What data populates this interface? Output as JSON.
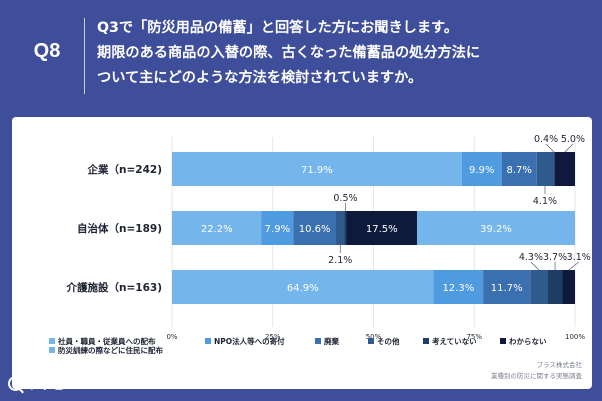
{
  "header": {
    "question_number": "Q8",
    "question_text": "Q3で「防災用品の備蓄」と回答した方にお聞きします。\n期限のある商品の入替の際、古くなった備蓄品の処分方法に\nついて主にどのような方法を検討されていますか。"
  },
  "brand": {
    "logo_text": "リサピー"
  },
  "credit": {
    "line1": "プラス株式会社",
    "line2": "業種別の防災に関する実態調査"
  },
  "colors": [
    "#74b5ec",
    "#4e9be0",
    "#3a6fb0",
    "#2e5a8e",
    "#1e3e66",
    "#0e1a3c"
  ],
  "chart_data": {
    "type": "bar",
    "orientation": "horizontal",
    "stacked": true,
    "categories": [
      "企業（n=242)",
      "自治体（n=189)",
      "介護施設（n=163)"
    ],
    "series": [
      {
        "name": "社員・職員・従業員への配布\n防災訓練の際などに住民に配布",
        "values": [
          71.9,
          22.2,
          64.9
        ],
        "labels": [
          "71.9%",
          "22.2%",
          "64.9%"
        ]
      },
      {
        "name": "NPO法人等への寄付",
        "values": [
          9.9,
          7.9,
          12.3
        ],
        "labels": [
          "9.9%",
          "7.9%",
          "12.3%"
        ]
      },
      {
        "name": "廃棄",
        "values": [
          8.7,
          10.6,
          11.7
        ],
        "labels": [
          "8.7%",
          "10.6%",
          "11.7%"
        ]
      },
      {
        "name": "その他",
        "values": [
          4.1,
          2.1,
          4.3
        ],
        "labels": [
          "4.1%",
          "2.1%",
          "4.3%"
        ]
      },
      {
        "name": "考えていない",
        "values": [
          0.4,
          0.5,
          3.7
        ],
        "labels": [
          "0.4%",
          "0.5%",
          "3.7%"
        ]
      },
      {
        "name": "わからない",
        "values": [
          5.0,
          17.5,
          3.1
        ],
        "labels": [
          "5.0%",
          "17.5%",
          "3.1%"
        ]
      },
      {
        "name": "",
        "values": [
          0,
          39.2,
          0
        ],
        "labels": [
          "",
          "39.2%",
          ""
        ]
      }
    ],
    "xlim": [
      0,
      100
    ],
    "x_ticks": [
      "0%",
      "25%",
      "50%",
      "75%",
      "100%"
    ],
    "grid": true,
    "legend_position": "bottom"
  }
}
